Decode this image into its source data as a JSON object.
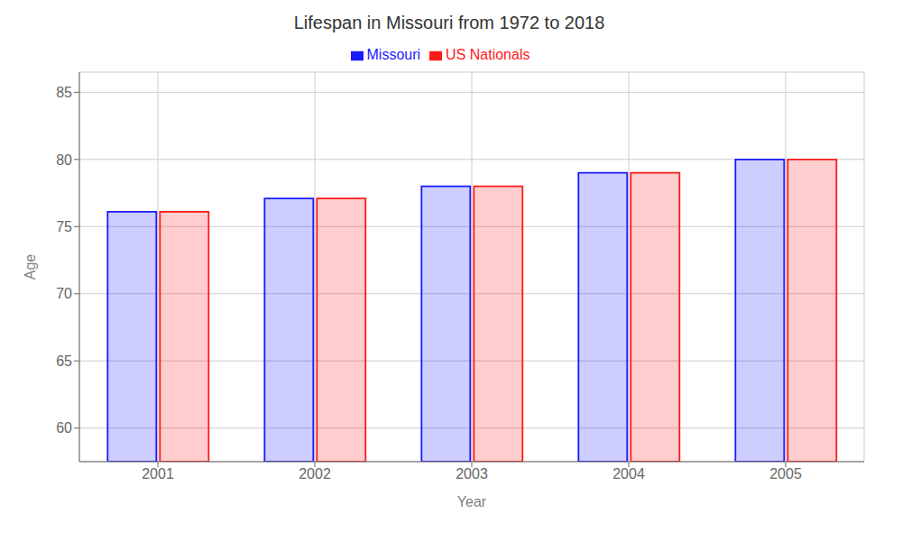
{
  "chart_data": {
    "type": "bar",
    "title": "Lifespan in Missouri from 1972 to 2018",
    "x_label": "Year",
    "y_label": "Age",
    "categories": [
      "2001",
      "2002",
      "2003",
      "2004",
      "2005"
    ],
    "series": [
      {
        "name": "Missouri",
        "color": "#1a1aff",
        "values": [
          76.1,
          77.1,
          78.0,
          79.0,
          80.0
        ]
      },
      {
        "name": "US Nationals",
        "color": "#ff1a1a",
        "values": [
          76.1,
          77.1,
          78.0,
          79.0,
          80.0
        ]
      }
    ],
    "ylim": [
      57.5,
      86.5
    ],
    "yticks": [
      60,
      65,
      70,
      75,
      80,
      85
    ],
    "grid": true,
    "legend": "top"
  }
}
